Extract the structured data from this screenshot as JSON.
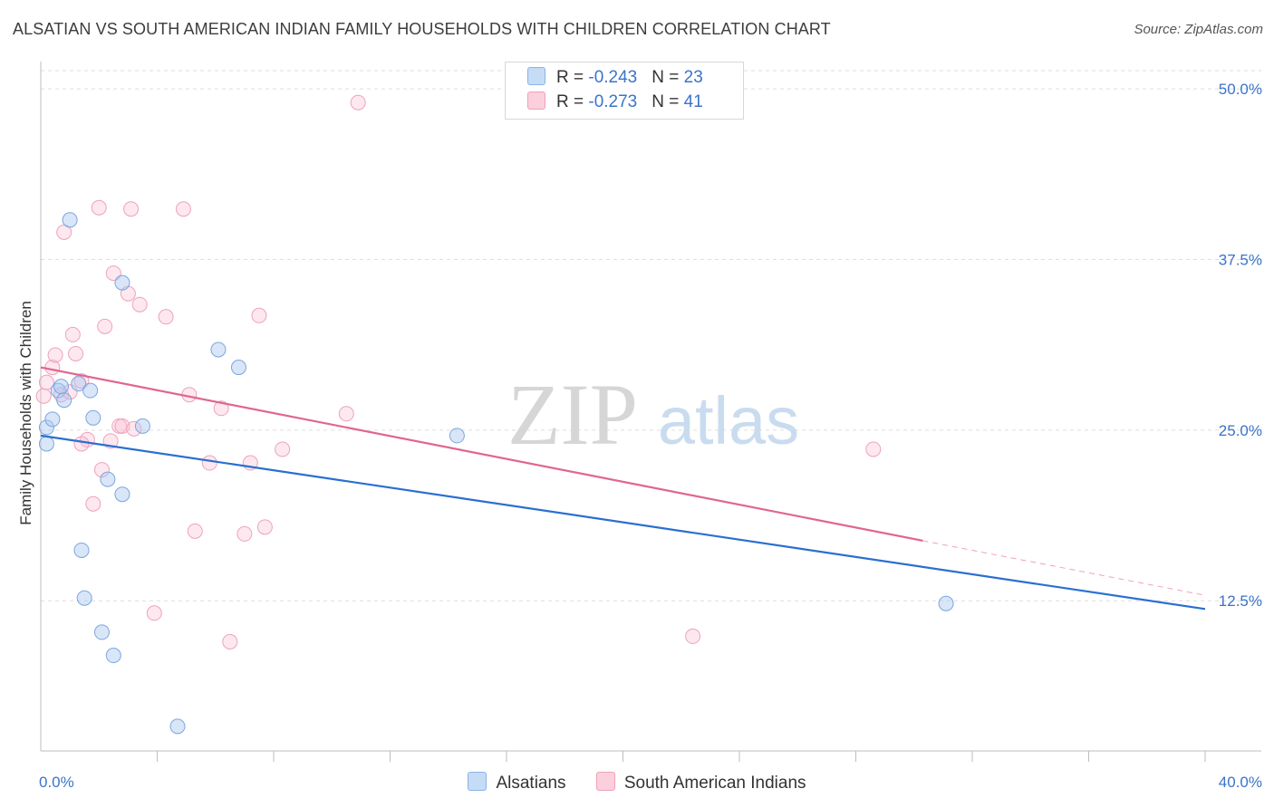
{
  "header": {
    "title": "ALSATIAN VS SOUTH AMERICAN INDIAN FAMILY HOUSEHOLDS WITH CHILDREN CORRELATION CHART",
    "source": "Source: ZipAtlas.com"
  },
  "watermark": {
    "zip": "ZIP",
    "atlas": "atlas"
  },
  "legend": {
    "rows": [
      {
        "r_label": "R = ",
        "r_value": "-0.243",
        "n_label": "N = ",
        "n_value": "23"
      },
      {
        "r_label": "R = ",
        "r_value": "-0.273",
        "n_label": "N = ",
        "n_value": "41"
      }
    ]
  },
  "chart_data": {
    "type": "scatter",
    "title": "ALSATIAN VS SOUTH AMERICAN INDIAN FAMILY HOUSEHOLDS WITH CHILDREN CORRELATION CHART",
    "xlabel": "",
    "ylabel": "Family Households with Children",
    "xlim": [
      0,
      40
    ],
    "ylim": [
      1.5,
      52
    ],
    "x_tick_labels": [
      "0.0%",
      "40.0%"
    ],
    "y_ticks": [
      12.5,
      25.0,
      37.5,
      50.0
    ],
    "y_tick_labels": [
      "12.5%",
      "25.0%",
      "37.5%",
      "50.0%"
    ],
    "grid": "horizontal dashed",
    "legend_position": "top-center",
    "colors": {
      "Alsatians": "#6fa3e8",
      "South American Indians": "#f0a0b8",
      "alsatian_line": "#2a6fd0",
      "sai_line": "#e06590"
    },
    "series": [
      {
        "name": "Alsatians",
        "points": [
          [
            0.2,
            25.2
          ],
          [
            0.2,
            24.0
          ],
          [
            0.4,
            25.8
          ],
          [
            0.6,
            27.9
          ],
          [
            0.7,
            28.2
          ],
          [
            0.8,
            27.2
          ],
          [
            1.0,
            40.4
          ],
          [
            1.3,
            28.4
          ],
          [
            1.7,
            27.9
          ],
          [
            1.8,
            25.9
          ],
          [
            2.3,
            21.4
          ],
          [
            2.8,
            35.8
          ],
          [
            3.5,
            25.3
          ],
          [
            6.1,
            30.9
          ],
          [
            6.8,
            29.6
          ],
          [
            14.3,
            24.6
          ],
          [
            1.4,
            16.2
          ],
          [
            1.5,
            12.7
          ],
          [
            2.1,
            10.2
          ],
          [
            2.5,
            8.5
          ],
          [
            4.7,
            3.3
          ],
          [
            2.8,
            20.3
          ],
          [
            31.1,
            12.3
          ]
        ]
      },
      {
        "name": "South American Indians",
        "points": [
          [
            0.1,
            27.5
          ],
          [
            0.2,
            28.5
          ],
          [
            0.4,
            29.6
          ],
          [
            0.5,
            30.5
          ],
          [
            0.7,
            27.6
          ],
          [
            0.8,
            39.5
          ],
          [
            1.0,
            27.8
          ],
          [
            1.1,
            32.0
          ],
          [
            1.2,
            30.6
          ],
          [
            1.4,
            28.6
          ],
          [
            1.6,
            24.3
          ],
          [
            1.8,
            19.6
          ],
          [
            2.0,
            41.3
          ],
          [
            2.1,
            22.1
          ],
          [
            2.2,
            32.6
          ],
          [
            2.4,
            24.2
          ],
          [
            2.5,
            36.5
          ],
          [
            2.7,
            25.3
          ],
          [
            2.8,
            25.3
          ],
          [
            3.0,
            35.0
          ],
          [
            3.1,
            41.2
          ],
          [
            3.2,
            25.1
          ],
          [
            3.4,
            34.2
          ],
          [
            3.9,
            11.6
          ],
          [
            4.3,
            33.3
          ],
          [
            4.9,
            41.2
          ],
          [
            5.1,
            27.6
          ],
          [
            5.3,
            17.6
          ],
          [
            5.8,
            22.6
          ],
          [
            6.2,
            26.6
          ],
          [
            6.5,
            9.5
          ],
          [
            7.0,
            17.4
          ],
          [
            7.2,
            22.6
          ],
          [
            7.5,
            33.4
          ],
          [
            7.7,
            17.9
          ],
          [
            8.3,
            23.6
          ],
          [
            10.5,
            26.2
          ],
          [
            10.9,
            49.0
          ],
          [
            22.4,
            9.9
          ],
          [
            28.6,
            23.6
          ],
          [
            1.4,
            24.0
          ]
        ]
      }
    ],
    "trend_lines": [
      {
        "series": "Alsatians",
        "x": [
          0.0,
          40.0
        ],
        "y": [
          24.6,
          11.9
        ]
      },
      {
        "series": "South American Indians",
        "x": [
          0.0,
          30.3
        ],
        "y": [
          29.6,
          16.9
        ]
      },
      {
        "series": "South American Indians",
        "style": "dashed",
        "x": [
          30.3,
          40.0
        ],
        "y": [
          16.9,
          12.9
        ]
      }
    ]
  },
  "bottom_legend": [
    "Alsatians",
    "South American Indians"
  ]
}
